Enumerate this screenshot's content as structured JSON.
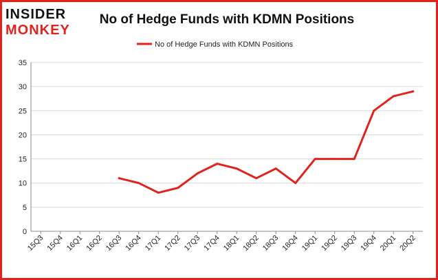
{
  "logo": {
    "line1": "INSIDER",
    "line2": "MONKEY"
  },
  "chart_data": {
    "type": "line",
    "title": "No of Hedge Funds with KDMN Positions",
    "xlabel": "",
    "ylabel": "",
    "categories": [
      "15Q3",
      "15Q4",
      "16Q1",
      "16Q2",
      "16Q3",
      "16Q4",
      "17Q1",
      "17Q2",
      "17Q3",
      "17Q4",
      "18Q1",
      "18Q2",
      "18Q3",
      "18Q4",
      "19Q1",
      "19Q2",
      "19Q3",
      "19Q4",
      "20Q1",
      "20Q2"
    ],
    "series": [
      {
        "name": "No of Hedge Funds with KDMN Positions",
        "color": "#e0231c",
        "values": [
          null,
          null,
          null,
          null,
          11,
          10,
          8,
          9,
          12,
          14,
          13,
          11,
          13,
          10,
          15,
          15,
          15,
          25,
          28,
          29
        ]
      }
    ],
    "ylim": [
      0,
      35
    ],
    "yticks": [
      0,
      5,
      10,
      15,
      20,
      25,
      30,
      35
    ],
    "grid": "horizontal",
    "legend": "top-center"
  },
  "colors": {
    "frame": "#e0231c",
    "grid": "#d9d9d9",
    "axis": "#888888"
  }
}
